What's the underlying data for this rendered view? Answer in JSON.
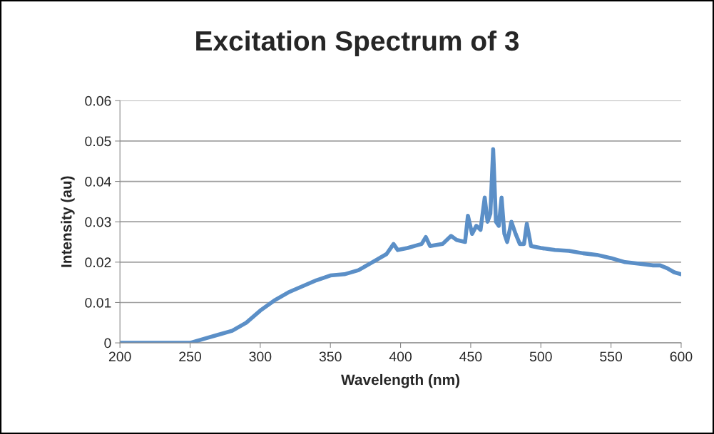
{
  "chart_data": {
    "type": "line",
    "title": "Excitation Spectrum of 3",
    "xlabel": "Wavelength (nm)",
    "ylabel": "Intensity (au)",
    "xlim": [
      200,
      600
    ],
    "xticks": [
      200,
      250,
      300,
      350,
      400,
      450,
      500,
      550,
      600
    ],
    "ylim": [
      0,
      0.06
    ],
    "yticks": [
      0,
      0.01,
      0.02,
      0.03,
      0.04,
      0.05,
      0.06
    ],
    "grid": "y",
    "legend": false,
    "marker": "none",
    "line_style": "solid",
    "series": [
      {
        "color": "#5b8fc7",
        "x": [
          200,
          250,
          260,
          270,
          280,
          290,
          300,
          310,
          320,
          330,
          340,
          350,
          360,
          370,
          380,
          390,
          395,
          398,
          405,
          410,
          415,
          418,
          421,
          430,
          436,
          440,
          446,
          448,
          451,
          454,
          457,
          460,
          462,
          464,
          466,
          468,
          470,
          472,
          474,
          476,
          479,
          482,
          485,
          488,
          490,
          493,
          500,
          510,
          520,
          530,
          540,
          550,
          560,
          570,
          580,
          585,
          590,
          595,
          600
        ],
        "values": [
          0,
          0,
          0.001,
          0.002,
          0.003,
          0.005,
          0.008,
          0.0105,
          0.0125,
          0.014,
          0.0155,
          0.0167,
          0.017,
          0.018,
          0.02,
          0.022,
          0.0245,
          0.023,
          0.0235,
          0.024,
          0.0245,
          0.0262,
          0.024,
          0.0245,
          0.0265,
          0.0255,
          0.025,
          0.0315,
          0.027,
          0.029,
          0.028,
          0.036,
          0.03,
          0.032,
          0.048,
          0.03,
          0.029,
          0.036,
          0.027,
          0.025,
          0.03,
          0.027,
          0.0245,
          0.0245,
          0.0295,
          0.024,
          0.0235,
          0.023,
          0.0228,
          0.0222,
          0.0218,
          0.021,
          0.02,
          0.0196,
          0.0192,
          0.0192,
          0.0185,
          0.0175,
          0.017
        ]
      }
    ]
  }
}
